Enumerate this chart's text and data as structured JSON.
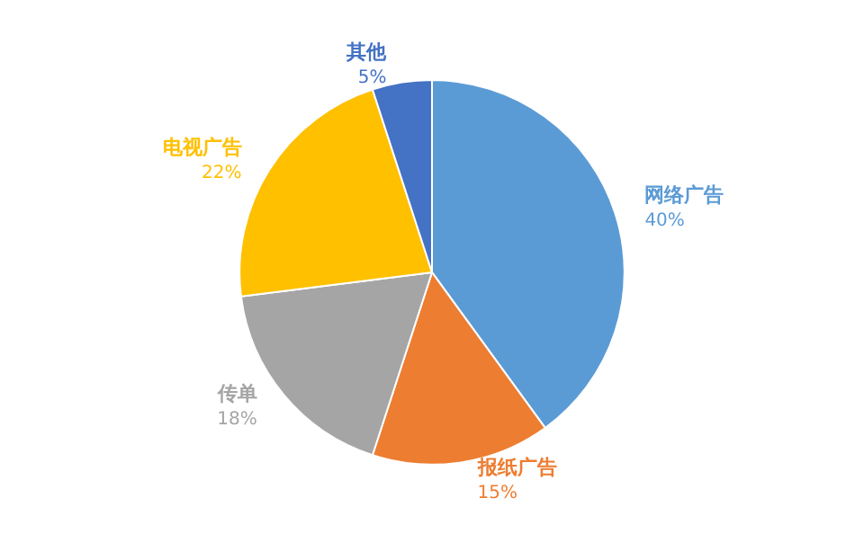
{
  "chart_data": {
    "type": "pie",
    "categories": [
      "网络广告",
      "报纸广告",
      "传单",
      "电视广告",
      "其他"
    ],
    "values": [
      40,
      15,
      18,
      22,
      5
    ],
    "colors": [
      "#5b9bd5",
      "#ed7d31",
      "#a5a5a5",
      "#ffc000",
      "#4472c4"
    ],
    "value_labels": [
      "40%",
      "15%",
      "18%",
      "22%",
      "5%"
    ],
    "legend": false
  }
}
